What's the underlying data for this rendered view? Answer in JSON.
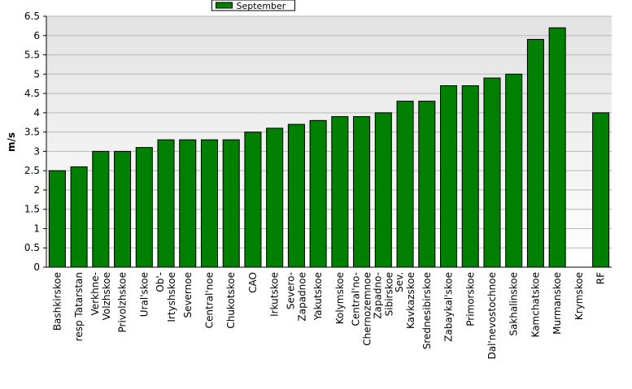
{
  "chart_data": {
    "type": "bar",
    "y_label": "m/s",
    "categories": [
      "Bashkirskoe",
      "resp Tatarstan",
      "Verkhne-\nVolzhskoe",
      "Privolzhskoe",
      "Ural'skoe",
      "Ob'-\nIrtyshskoe",
      "Severnoe",
      "Central'noe",
      "Chukotskoe",
      "CAO",
      "Irkutskoe",
      "Severo-\nZapadnoe",
      "Yakutskoe",
      "Kolymskoe",
      "Central'no-\nChernozemnoe",
      "Zapadno-\nSibirskoe",
      "Sev.\nKavkazskoe",
      "Srednesibirskoe",
      "Zabaykal'skoe",
      "Primorskoe",
      "Dal'nevostochnoe",
      "Sakhalinskoe",
      "Kamchatskoe",
      "Murmanskoe",
      "Krymskoe",
      "RF"
    ],
    "series": [
      {
        "name": "September",
        "color": "#008000",
        "values": [
          2.5,
          2.6,
          3.0,
          3.0,
          3.1,
          3.3,
          3.3,
          3.3,
          3.3,
          3.5,
          3.6,
          3.7,
          3.8,
          3.9,
          3.9,
          4.0,
          4.3,
          4.3,
          4.7,
          4.7,
          4.9,
          5.0,
          5.9,
          6.2,
          null,
          4.0
        ]
      }
    ],
    "ylim": [
      0,
      6.5
    ],
    "yticks": [
      0,
      0.5,
      1,
      1.5,
      2,
      2.5,
      3,
      3.5,
      4,
      4.5,
      5,
      5.5,
      6,
      6.5
    ],
    "grid": true,
    "legend": "top"
  }
}
